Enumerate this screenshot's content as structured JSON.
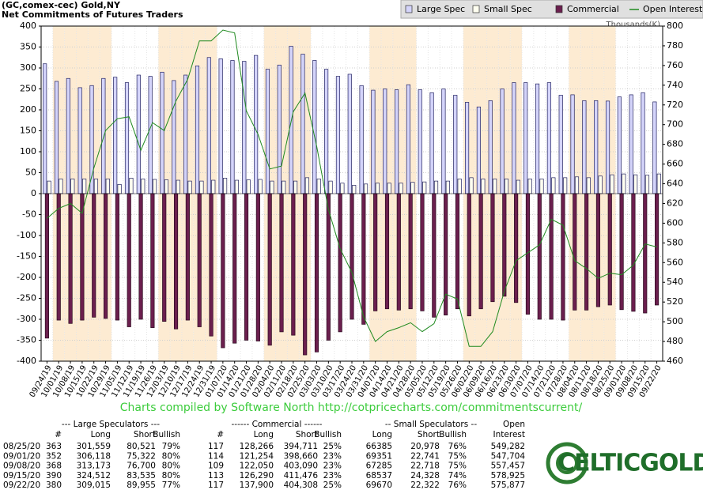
{
  "chart_data": {
    "type": "bar",
    "title": "(GC,comex-cec) Gold,NY",
    "subtitle": "Net Commitments of Futures Traders",
    "y2_label": "Thousands(K)",
    "categories": [
      "09/24/19",
      "10/01/19",
      "10/08/19",
      "10/15/19",
      "10/22/19",
      "10/29/19",
      "11/05/19",
      "11/12/19",
      "11/19/19",
      "11/26/19",
      "12/03/19",
      "12/10/19",
      "12/17/19",
      "12/24/19",
      "12/31/19",
      "01/07/20",
      "01/14/20",
      "01/21/20",
      "01/28/20",
      "02/04/20",
      "02/11/20",
      "02/18/20",
      "02/25/20",
      "03/03/20",
      "03/10/20",
      "03/17/20",
      "03/24/20",
      "03/31/20",
      "04/07/20",
      "04/14/20",
      "04/21/20",
      "04/28/20",
      "05/05/20",
      "05/12/20",
      "05/19/20",
      "05/26/20",
      "06/02/20",
      "06/09/20",
      "06/16/20",
      "06/23/20",
      "06/30/20",
      "07/07/20",
      "07/14/20",
      "07/21/20",
      "07/28/20",
      "08/04/20",
      "08/11/20",
      "08/18/20",
      "08/25/20",
      "09/01/20",
      "09/08/20",
      "09/15/20",
      "09/22/20"
    ],
    "series": [
      {
        "name": "Large Spec",
        "color": "#d4d4fa",
        "type": "bar",
        "values": [
          310,
          268,
          275,
          253,
          258,
          275,
          278,
          265,
          283,
          280,
          290,
          270,
          283,
          305,
          325,
          322,
          318,
          316,
          330,
          297,
          307,
          352,
          333,
          318,
          297,
          280,
          285,
          258,
          247,
          250,
          248,
          260,
          248,
          241,
          250,
          235,
          218,
          207,
          222,
          250,
          265,
          265,
          262,
          265,
          235,
          236,
          222,
          222,
          221,
          231,
          236,
          241,
          219
        ]
      },
      {
        "name": "Small Spec",
        "color": "#fffff0",
        "type": "bar",
        "values": [
          30,
          35,
          35,
          35,
          35,
          35,
          22,
          37,
          35,
          34,
          33,
          32,
          30,
          30,
          32,
          37,
          32,
          33,
          34,
          30,
          30,
          30,
          38,
          35,
          30,
          25,
          20,
          23,
          25,
          25,
          25,
          27,
          28,
          30,
          30,
          35,
          38,
          35,
          35,
          35,
          32,
          35,
          35,
          38,
          38,
          40,
          38,
          42,
          45,
          47,
          45,
          44,
          47
        ]
      },
      {
        "name": "Commercial",
        "color": "#6b1f4e",
        "type": "bar",
        "values": [
          -345,
          -302,
          -310,
          -302,
          -295,
          -298,
          -302,
          -318,
          -300,
          -320,
          -305,
          -323,
          -302,
          -318,
          -340,
          -368,
          -357,
          -350,
          -352,
          -362,
          -330,
          -338,
          -385,
          -378,
          -350,
          -330,
          -300,
          -312,
          -280,
          -275,
          -278,
          -275,
          -280,
          -295,
          -290,
          -275,
          -292,
          -275,
          -258,
          -245,
          -260,
          -288,
          -300,
          -300,
          -302,
          -278,
          -278,
          -270,
          -266,
          -277,
          -281,
          -285,
          -266
        ]
      },
      {
        "name": "Open Interest",
        "color": "#1f8a1f",
        "type": "line",
        "axis": "y2",
        "values": [
          605,
          615,
          620,
          610,
          656,
          694,
          706,
          708,
          674,
          702,
          694,
          724,
          746,
          785,
          785,
          796,
          793,
          714,
          690,
          655,
          658,
          713,
          732,
          678,
          614,
          574,
          550,
          505,
          480,
          490,
          494,
          499,
          490,
          498,
          528,
          523,
          475,
          475,
          490,
          531,
          562,
          570,
          578,
          604,
          598,
          562,
          554,
          544,
          549.282,
          547.704,
          557.457,
          578.925,
          575.877
        ]
      }
    ],
    "ylim": [
      -400,
      400
    ],
    "yticks": [
      -400,
      -350,
      -300,
      -250,
      -200,
      -150,
      -100,
      -50,
      0,
      50,
      100,
      150,
      200,
      250,
      300,
      350,
      400
    ],
    "y2lim": [
      460,
      800
    ],
    "y2ticks": [
      460,
      480,
      500,
      520,
      540,
      560,
      580,
      600,
      620,
      640,
      660,
      680,
      700,
      720,
      740,
      760,
      780,
      800
    ],
    "grid": true,
    "legend": "top-right"
  },
  "footer": "Charts compiled by Software North  http://cotpricecharts.com/commitmentscurrent/",
  "table": {
    "groups": [
      "--- Large Speculators ---",
      "------ Commercial ------",
      "-- Small Speculators --",
      "Open"
    ],
    "columns": [
      "#",
      "Long",
      "Short",
      "Bullish",
      "#",
      "Long",
      "Short",
      "Bullish",
      "Long",
      "Short",
      "Bullish",
      "Interest"
    ],
    "rows": [
      [
        "08/25/20",
        "363",
        "301,559",
        "80,521",
        "79%",
        "117",
        "128,266",
        "394,711",
        "25%",
        "66385",
        "20,978",
        "76%",
        "549,282"
      ],
      [
        "09/01/20",
        "352",
        "306,118",
        "75,322",
        "80%",
        "114",
        "121,254",
        "398,660",
        "23%",
        "69351",
        "22,741",
        "75%",
        "547,704"
      ],
      [
        "09/08/20",
        "368",
        "313,173",
        "76,700",
        "80%",
        "109",
        "122,050",
        "403,090",
        "23%",
        "67285",
        "22,718",
        "75%",
        "557,457"
      ],
      [
        "09/15/20",
        "390",
        "324,512",
        "83,535",
        "80%",
        "113",
        "126,290",
        "411,476",
        "23%",
        "68537",
        "24,328",
        "74%",
        "578,925"
      ],
      [
        "09/22/20",
        "380",
        "309,015",
        "89,955",
        "77%",
        "117",
        "137,900",
        "404,308",
        "25%",
        "69670",
        "22,322",
        "76%",
        "575,877"
      ]
    ]
  },
  "logo": "CELTICGOLD"
}
